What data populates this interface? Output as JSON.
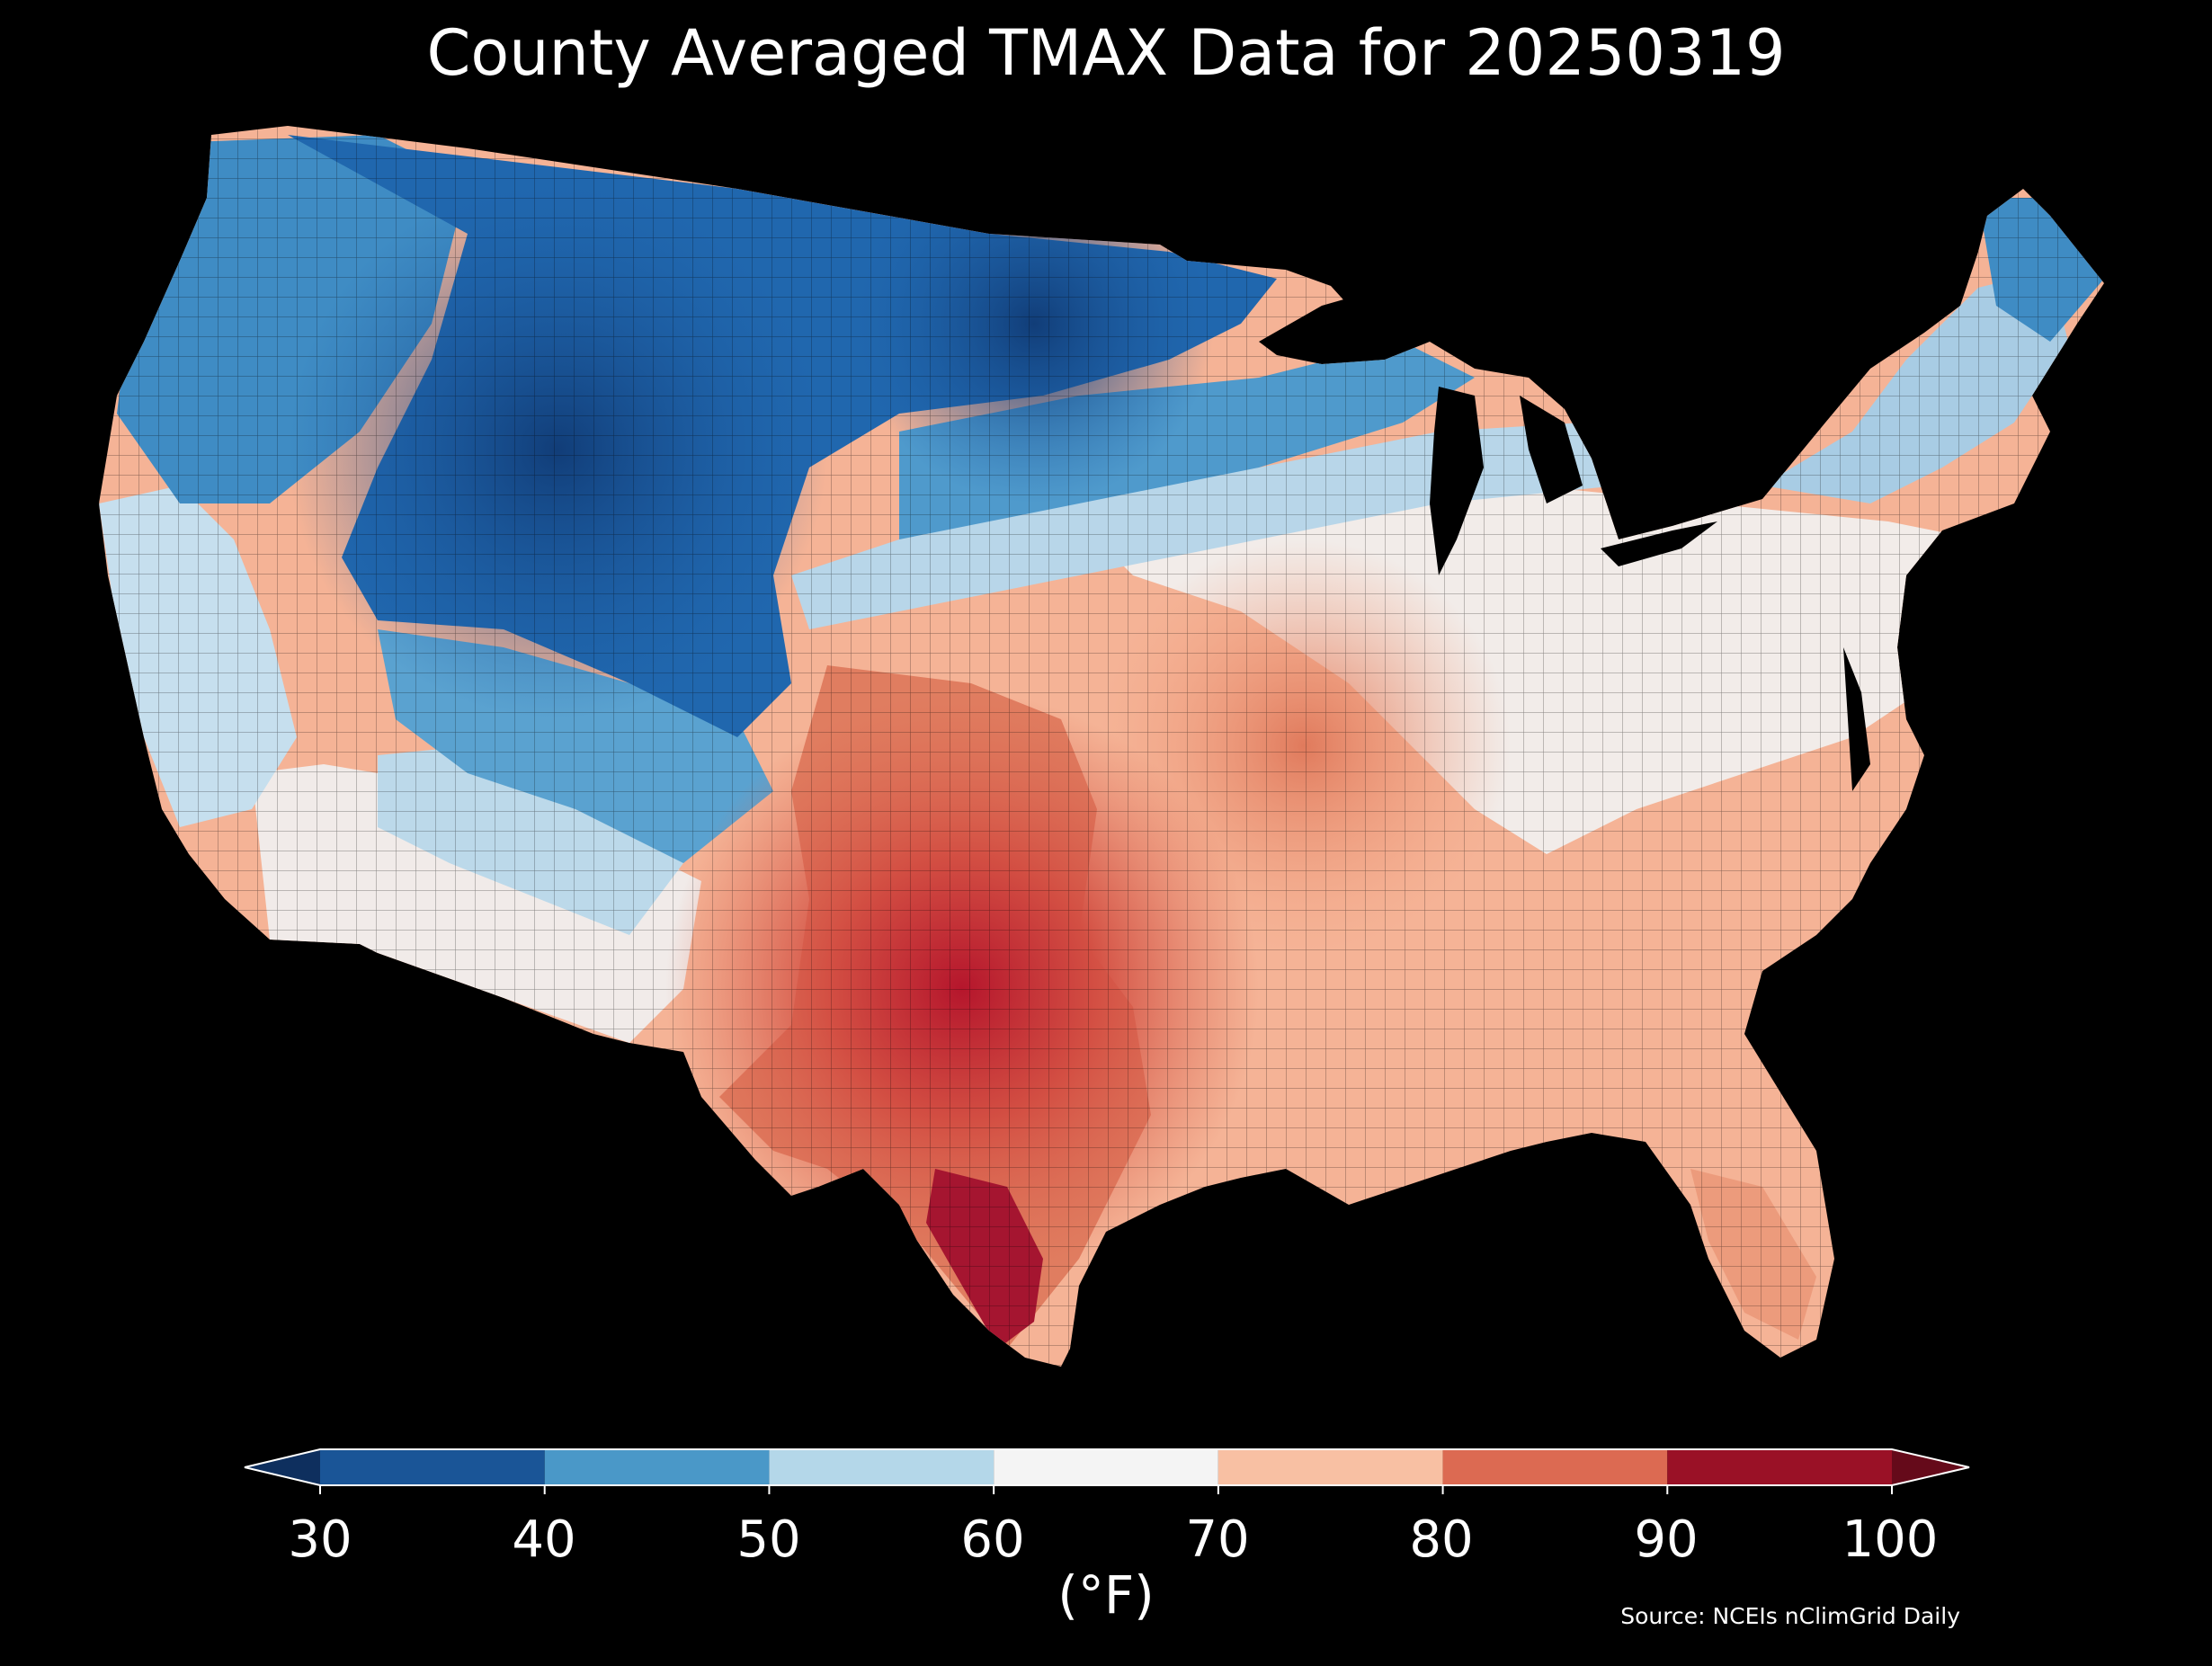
{
  "title": "County Averaged TMAX Data for 20250319",
  "colorbar": {
    "unit_label": "(°F)",
    "ticks": [
      "30",
      "40",
      "50",
      "60",
      "70",
      "80",
      "90",
      "100"
    ],
    "bins": [
      {
        "from": 30,
        "to": 40,
        "color": "#1a5597"
      },
      {
        "from": 40,
        "to": 50,
        "color": "#4a98c8"
      },
      {
        "from": 50,
        "to": 60,
        "color": "#b4d7e9"
      },
      {
        "from": 60,
        "to": 70,
        "color": "#f4f4f4"
      },
      {
        "from": 70,
        "to": 80,
        "color": "#f8c0a3"
      },
      {
        "from": 80,
        "to": 90,
        "color": "#dc6a52"
      },
      {
        "from": 90,
        "to": 100,
        "color": "#9a1126"
      }
    ],
    "under_color": "#0e2f5e",
    "over_color": "#650a1a",
    "extend": "both"
  },
  "source_note": "Source: NCEIs nClimGrid Daily",
  "map": {
    "region": "Contiguous United States",
    "variable": "TMAX",
    "pattern": "Coolest (30-40 °F) across the northern Rockies and northern Plains; 40-60 °F over the West Coast, Pacific Northwest, Great Lakes and New England; 60-70 °F in the Ohio Valley and Mid-Atlantic; 70-80 °F across the Southeast and central Plains; 80-90 °F in Oklahoma, Kansas and Texas; 90-100 °F in south Texas."
  }
}
